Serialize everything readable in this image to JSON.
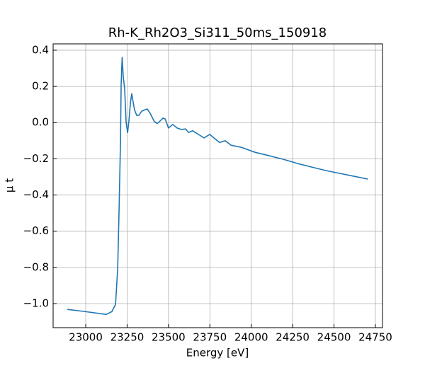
{
  "chart_data": {
    "type": "line",
    "title": "Rh-K_Rh2O3_Si311_50ms_150918",
    "xlabel": "Energy [eV]",
    "ylabel": "μ t",
    "color": "#1f77b4",
    "grid": true,
    "x": [
      22889,
      22996,
      23124,
      23158,
      23180,
      23193,
      23201,
      23210,
      23214,
      23220,
      23227,
      23235,
      23244,
      23253,
      23261,
      23270,
      23278,
      23287,
      23295,
      23308,
      23321,
      23338,
      23355,
      23372,
      23390,
      23415,
      23432,
      23445,
      23467,
      23480,
      23500,
      23526,
      23552,
      23578,
      23604,
      23621,
      23646,
      23681,
      23715,
      23749,
      23775,
      23809,
      23843,
      23878,
      23938,
      24023,
      24109,
      24194,
      24280,
      24366,
      24451,
      24537,
      24623,
      24704
    ],
    "values": [
      -1.032,
      -1.044,
      -1.06,
      -1.044,
      -1.005,
      -0.81,
      -0.5,
      -0.105,
      0.21,
      0.36,
      0.25,
      0.19,
      0.0,
      -0.055,
      0.01,
      0.11,
      0.16,
      0.11,
      0.07,
      0.04,
      0.04,
      0.063,
      0.07,
      0.075,
      0.05,
      0.005,
      -0.005,
      0.005,
      0.025,
      0.02,
      -0.03,
      -0.01,
      -0.03,
      -0.038,
      -0.035,
      -0.055,
      -0.045,
      -0.065,
      -0.085,
      -0.065,
      -0.085,
      -0.11,
      -0.1,
      -0.125,
      -0.136,
      -0.164,
      -0.183,
      -0.203,
      -0.226,
      -0.246,
      -0.265,
      -0.281,
      -0.297,
      -0.312
    ],
    "xlim": [
      22803,
      24793
    ],
    "xticks": [
      23000,
      23250,
      23500,
      23750,
      24000,
      24250,
      24500,
      24750
    ],
    "ylim": [
      -1.133,
      0.435
    ],
    "yticks": [
      {
        "value": -1.0,
        "label": "−1.0"
      },
      {
        "value": -0.8,
        "label": "−0.8"
      },
      {
        "value": -0.6,
        "label": "−0.6"
      },
      {
        "value": -0.4,
        "label": "−0.4"
      },
      {
        "value": -0.2,
        "label": "−0.2"
      },
      {
        "value": 0.0,
        "label": "0.0"
      },
      0.2,
      0.4
    ]
  }
}
